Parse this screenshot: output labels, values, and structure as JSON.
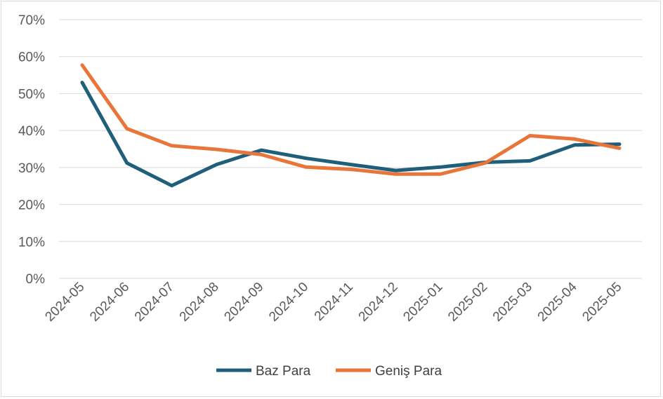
{
  "chart_data": {
    "type": "line",
    "categories": [
      "2024-05",
      "2024-06",
      "2024-07",
      "2024-08",
      "2024-09",
      "2024-10",
      "2024-11",
      "2024-12",
      "2025-01",
      "2025-02",
      "2025-03",
      "2025-04",
      "2025-05"
    ],
    "y_ticks": [
      "0%",
      "10%",
      "20%",
      "30%",
      "40%",
      "50%",
      "60%",
      "70%"
    ],
    "ylim": [
      0,
      70
    ],
    "grid": true,
    "legend_position": "bottom",
    "series": [
      {
        "name": "Baz Para",
        "color": "#1f5f7a",
        "values": [
          53.0,
          31.2,
          25.1,
          30.8,
          34.7,
          32.5,
          30.8,
          29.2,
          30.1,
          31.4,
          31.8,
          36.1,
          36.3
        ]
      },
      {
        "name": "Geniş Para",
        "color": "#e8763a",
        "values": [
          57.7,
          40.5,
          35.9,
          34.9,
          33.5,
          30.1,
          29.5,
          28.2,
          28.2,
          31.2,
          38.6,
          37.7,
          35.2
        ]
      }
    ]
  }
}
